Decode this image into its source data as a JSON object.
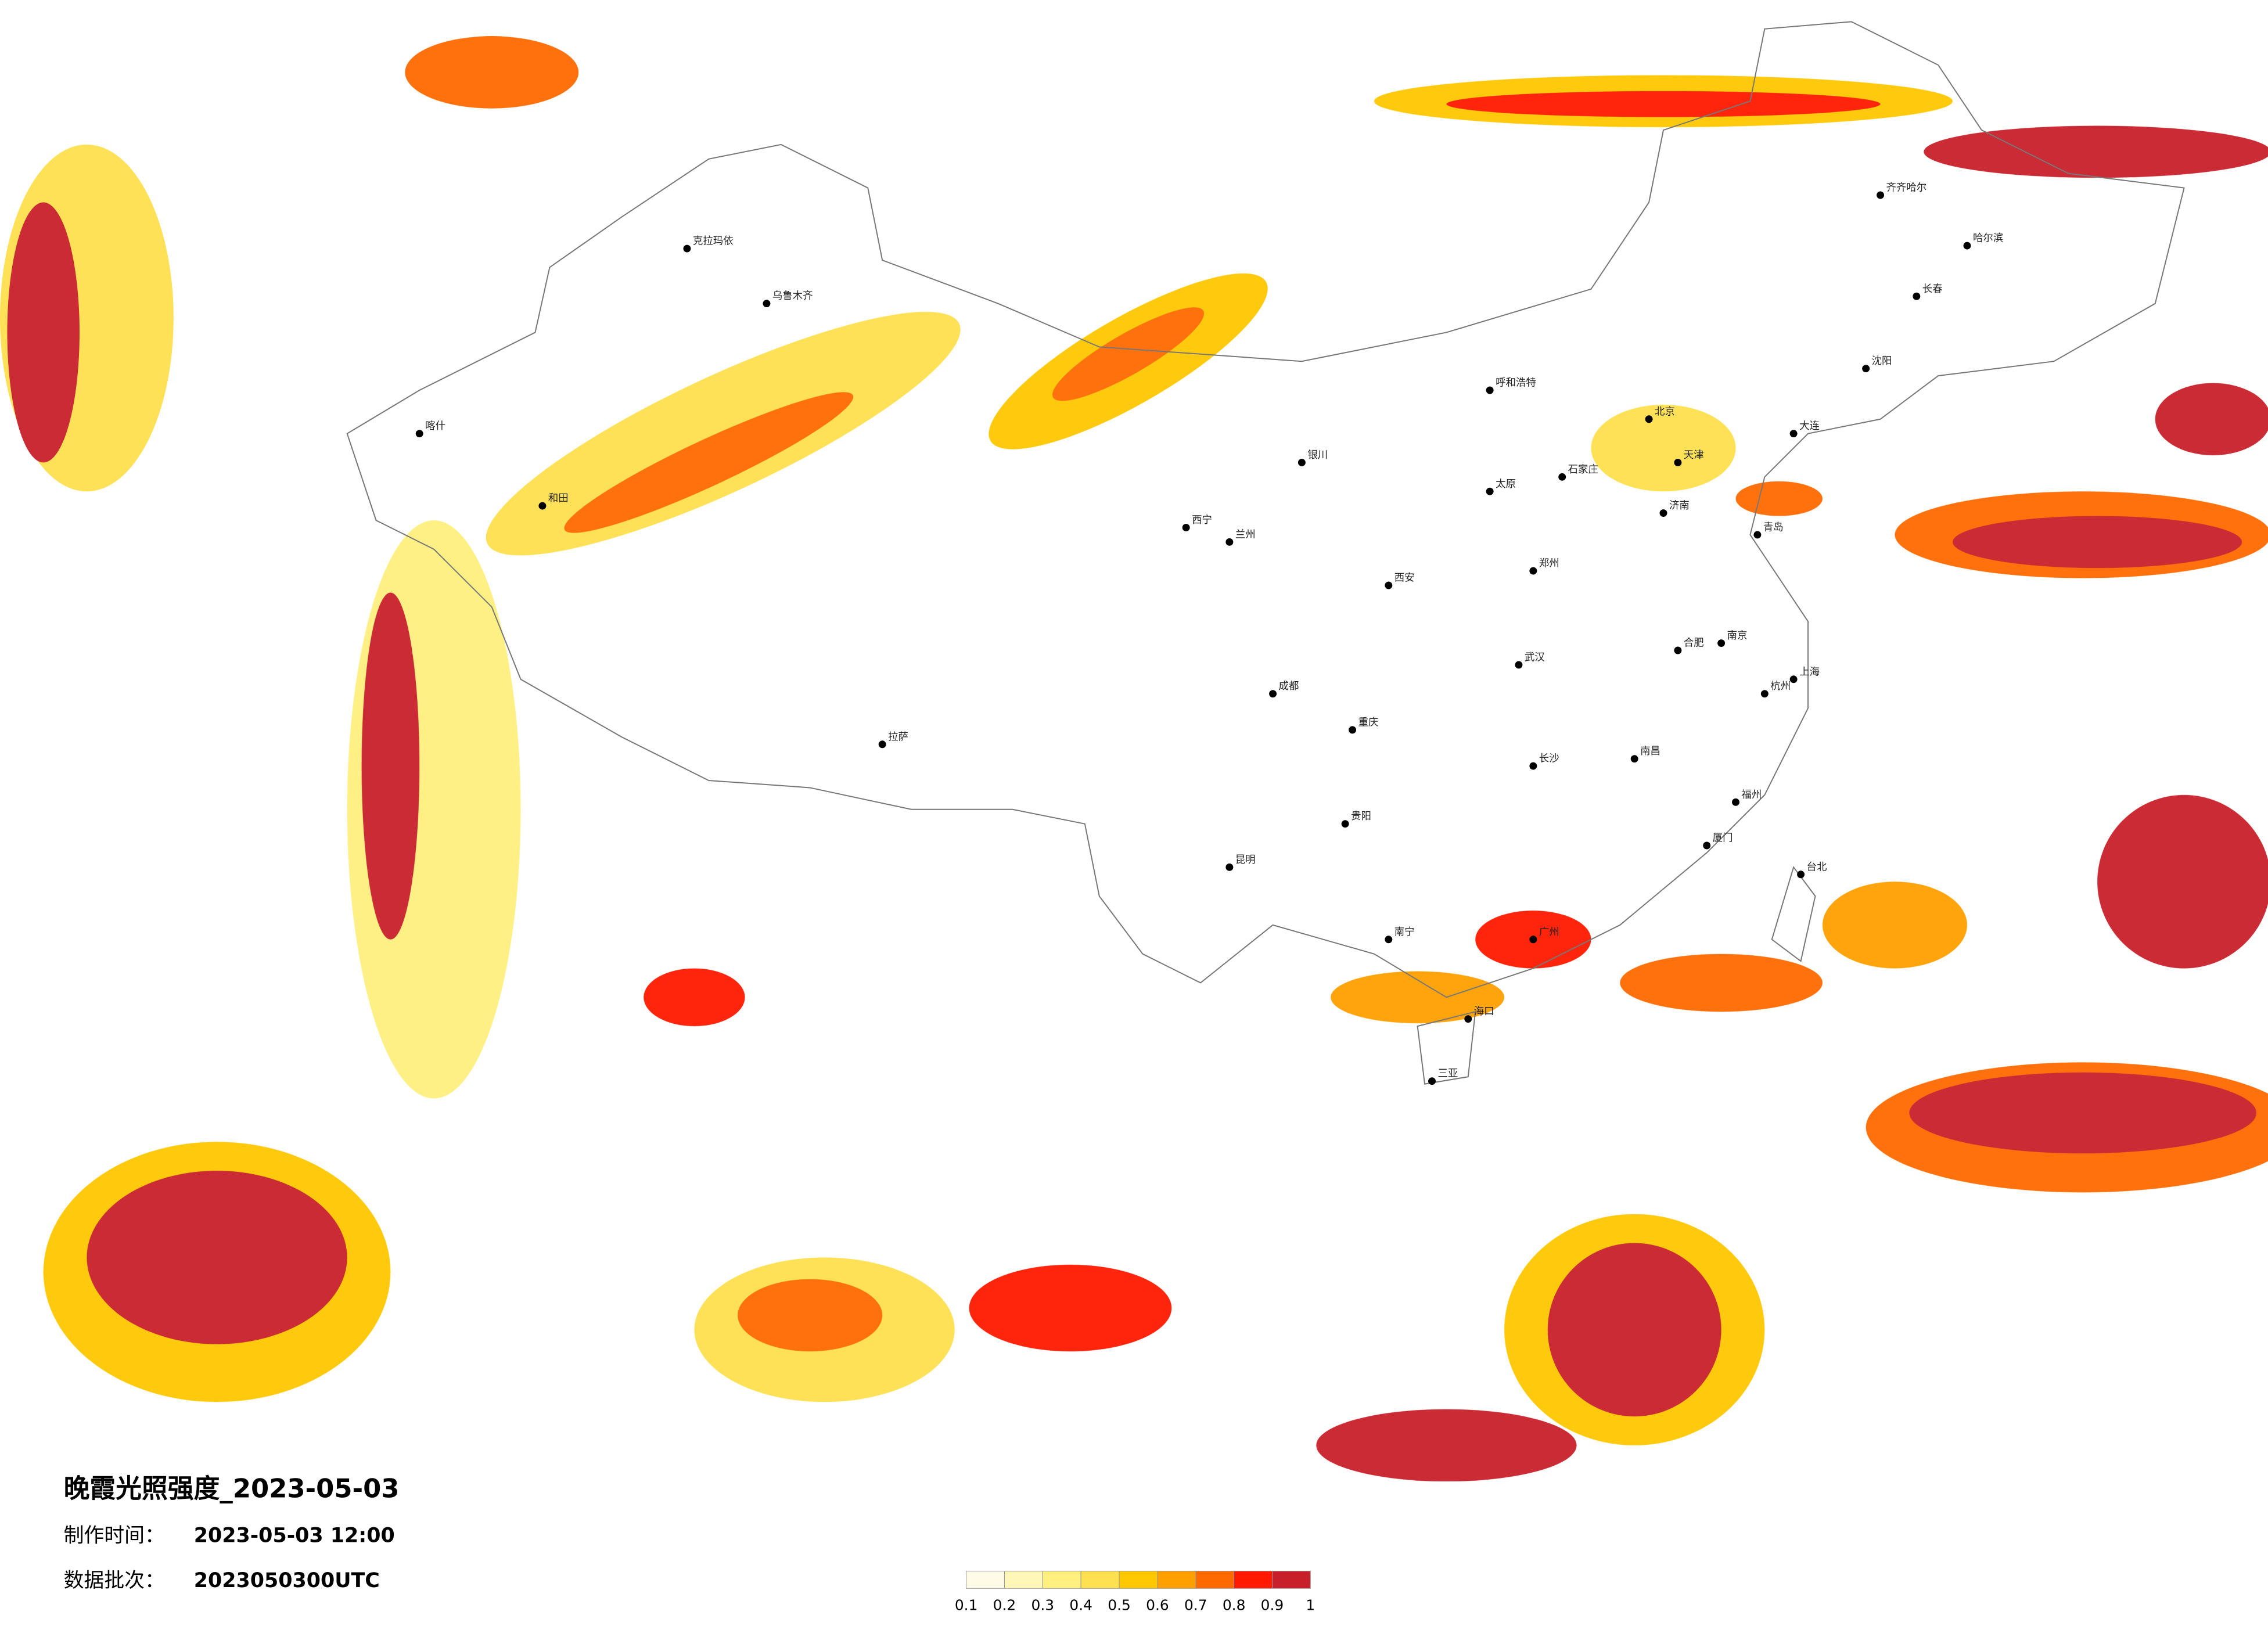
{
  "title": "晚霞光照强度_2023-05-03",
  "made_label": "制作时间：",
  "made_value": "2023-05-03 12:00",
  "batch_label": "数据批次：",
  "batch_value": "2023050300UTC",
  "legend": {
    "ticks": [
      "0.1",
      "0.2",
      "0.3",
      "0.4",
      "0.5",
      "0.6",
      "0.7",
      "0.8",
      "0.9",
      "1"
    ],
    "colors": [
      "#fffbe6",
      "#fff7b8",
      "#fff080",
      "#ffe050",
      "#ffc800",
      "#ffa000",
      "#ff6a00",
      "#ff1a00",
      "#c8202a"
    ]
  },
  "cities": [
    "北京",
    "天津",
    "上海",
    "广州",
    "重庆",
    "成都",
    "武汉",
    "西安",
    "兰州",
    "乌鲁木齐",
    "拉萨",
    "哈尔滨",
    "长春",
    "沈阳",
    "呼和浩特",
    "银川",
    "西宁",
    "昆明",
    "贵阳",
    "南宁",
    "海口",
    "郑州",
    "济南",
    "南京",
    "杭州",
    "福州",
    "南昌",
    "长沙",
    "合肥",
    "太原",
    "石家庄",
    "台北",
    "喀什",
    "和田",
    "克拉玛依",
    "齐齐哈尔",
    "大连",
    "青岛",
    "厦门",
    "三亚"
  ]
}
